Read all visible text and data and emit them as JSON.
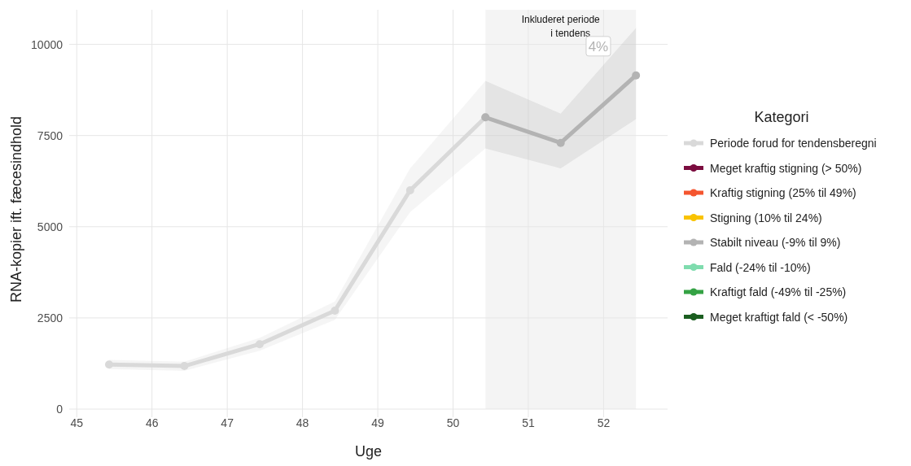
{
  "chart_data": {
    "type": "line",
    "xlabel": "Uge",
    "ylabel": "RNA-kopier ift. fæcesindhold",
    "legend_title": "Kategori",
    "x": [
      45.43,
      46.43,
      47.43,
      48.43,
      49.43,
      50.43,
      51.43,
      52.43
    ],
    "xlim": [
      44.9,
      52.85
    ],
    "xticks": [
      45,
      46,
      47,
      48,
      49,
      50,
      51,
      52
    ],
    "ylim": [
      0,
      10950
    ],
    "yticks": [
      0,
      2500,
      5000,
      7500,
      10000
    ],
    "grid": true,
    "legend": "right",
    "marker": "circle",
    "line_style": "solid",
    "series": [
      {
        "name": "Periode forud for tendensberegni",
        "color": "#d9d9d9",
        "values": [
          1220,
          1180,
          1780,
          2700,
          6000,
          8000,
          null,
          null
        ],
        "lower": [
          1100,
          1050,
          1600,
          2450,
          5400,
          7150,
          null,
          null
        ],
        "upper": [
          1350,
          1300,
          1950,
          2950,
          6600,
          9000,
          null,
          null
        ]
      },
      {
        "name": "Meget kraftig stigning (> 50%)",
        "color": "#7b0c3f",
        "values": [
          null,
          null,
          null,
          null,
          null,
          null,
          null,
          null
        ]
      },
      {
        "name": "Kraftig stigning (25% til 49%)",
        "color": "#f4552f",
        "values": [
          null,
          null,
          null,
          null,
          null,
          null,
          null,
          null
        ]
      },
      {
        "name": "Stigning (10% til 24%)",
        "color": "#f9c300",
        "values": [
          null,
          null,
          null,
          null,
          null,
          null,
          null,
          null
        ]
      },
      {
        "name": "Stabilt niveau (-9% til 9%)",
        "color": "#b3b3b3",
        "values": [
          null,
          null,
          null,
          null,
          null,
          8000,
          7300,
          9150
        ],
        "lower": [
          null,
          null,
          null,
          null,
          null,
          7150,
          6600,
          7950
        ],
        "upper": [
          null,
          null,
          null,
          null,
          null,
          9000,
          8100,
          10450
        ]
      },
      {
        "name": "Fald (-24% til -10%)",
        "color": "#7fdcae",
        "values": [
          null,
          null,
          null,
          null,
          null,
          null,
          null,
          null
        ]
      },
      {
        "name": "Kraftigt fald (-49% til -25%)",
        "color": "#34a244",
        "values": [
          null,
          null,
          null,
          null,
          null,
          null,
          null,
          null
        ]
      },
      {
        "name": "Meget kraftigt fald (< -50%)",
        "color": "#1b5e20",
        "values": [
          null,
          null,
          null,
          null,
          null,
          null,
          null,
          null
        ]
      }
    ],
    "bands": [
      {
        "axis": "x",
        "from": 50.43,
        "to": 52.43,
        "label": "Inkluderet periode i tendens",
        "color": "#f4f4f4"
      }
    ],
    "annotations": [
      {
        "text": "4%",
        "x": 51.93,
        "y": 9950
      }
    ]
  }
}
